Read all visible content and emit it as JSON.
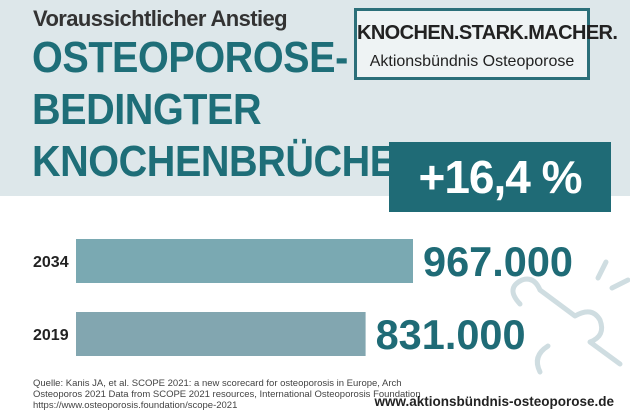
{
  "header": {
    "kicker": "Voraussichtlicher Anstieg",
    "headline_lines": [
      "OSTEOPOROSE-",
      "BEDINGTER",
      "KNOCHENBRÜCHE"
    ],
    "increase": "+16,4 %"
  },
  "brand": {
    "name": "KNOCHEN.STARK.MACHER.",
    "subtitle": "Aktionsbündnis Osteoporose"
  },
  "chart_data": {
    "type": "bar",
    "orientation": "horizontal",
    "categories": [
      "2034",
      "2019"
    ],
    "values": [
      967000,
      831000
    ],
    "value_labels": [
      "967.000",
      "831.000"
    ],
    "xlim": [
      0,
      967000
    ],
    "grid": false,
    "colors": [
      "#7aa9b2",
      "#82a6b0"
    ],
    "label_color": "#1f6b76"
  },
  "footer": {
    "source_lines": [
      "Quelle: Kanis JA, et al. SCOPE 2021: a new scorecard for osteoporosis in Europe, Arch",
      "Osteoporos 2021 Data from SCOPE 2021 resources, International Osteoporosis Foundation",
      "https://www.osteoporosis.foundation/scope-2021"
    ],
    "url": "www.aktionsbündnis-osteoporose.de"
  },
  "decoration": {
    "icon": "broken-bone-icon"
  }
}
